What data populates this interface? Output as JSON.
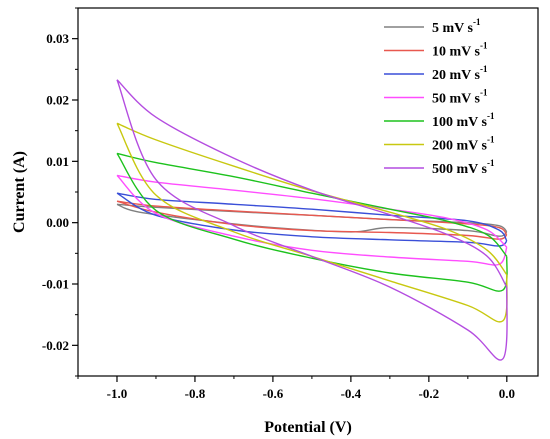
{
  "chart_data": {
    "type": "line",
    "title": "",
    "xlabel": "Potential (V)",
    "ylabel": "Current (A)",
    "xlim": [
      -1.1,
      0.08
    ],
    "ylim": [
      -0.025,
      0.035
    ],
    "xticks": [
      -1.0,
      -0.8,
      -0.6,
      -0.4,
      -0.2,
      0.0
    ],
    "xtick_labels": [
      "-1.0",
      "-0.8",
      "-0.6",
      "-0.4",
      "-0.2",
      "0.0"
    ],
    "yticks": [
      -0.02,
      -0.01,
      0.0,
      0.01,
      0.02,
      0.03
    ],
    "ytick_labels": [
      "-0.02",
      "-0.01",
      "0.00",
      "0.01",
      "0.02",
      "0.03"
    ],
    "grid": false,
    "legend_position": "top-right",
    "series": [
      {
        "name": "5 mV s-1",
        "label_main": "5 mV s",
        "label_sup": "-1",
        "color": "#808080",
        "upper": [
          [
            -1.0,
            0.003
          ],
          [
            -0.9,
            0.0025
          ],
          [
            -0.7,
            0.0018
          ],
          [
            -0.5,
            0.0012
          ],
          [
            -0.3,
            0.0005
          ],
          [
            -0.1,
            0.0
          ],
          [
            -0.02,
            -0.0005
          ],
          [
            0.0,
            -0.0015
          ]
        ],
        "lower": [
          [
            0.0,
            -0.0015
          ],
          [
            -0.02,
            -0.0022
          ],
          [
            -0.1,
            -0.0013
          ],
          [
            -0.3,
            -0.0008
          ],
          [
            -0.4,
            -0.0015
          ],
          [
            -0.6,
            -0.0008
          ],
          [
            -0.8,
            0.0005
          ],
          [
            -0.95,
            0.0018
          ],
          [
            -1.0,
            0.003
          ]
        ]
      },
      {
        "name": "10 mV s-1",
        "label_main": "10 mV s",
        "label_sup": "-1",
        "color": "#e8584f",
        "upper": [
          [
            -1.0,
            0.0035
          ],
          [
            -0.9,
            0.0027
          ],
          [
            -0.7,
            0.0019
          ],
          [
            -0.5,
            0.0012
          ],
          [
            -0.3,
            0.0005
          ],
          [
            -0.1,
            -0.0002
          ],
          [
            -0.02,
            -0.0008
          ],
          [
            0.0,
            -0.002
          ]
        ],
        "lower": [
          [
            0.0,
            -0.002
          ],
          [
            -0.02,
            -0.0027
          ],
          [
            -0.1,
            -0.0021
          ],
          [
            -0.3,
            -0.0016
          ],
          [
            -0.5,
            -0.0013
          ],
          [
            -0.7,
            -0.0003
          ],
          [
            -0.9,
            0.0017
          ],
          [
            -1.0,
            0.0035
          ]
        ]
      },
      {
        "name": "20 mV s-1",
        "label_main": "20 mV s",
        "label_sup": "-1",
        "color": "#3a4fd8",
        "upper": [
          [
            -1.0,
            0.0048
          ],
          [
            -0.9,
            0.0038
          ],
          [
            -0.7,
            0.003
          ],
          [
            -0.5,
            0.0022
          ],
          [
            -0.3,
            0.0012
          ],
          [
            -0.1,
            0.0003
          ],
          [
            -0.02,
            -0.0012
          ],
          [
            0.0,
            -0.003
          ]
        ],
        "lower": [
          [
            0.0,
            -0.003
          ],
          [
            -0.02,
            -0.0038
          ],
          [
            -0.1,
            -0.0032
          ],
          [
            -0.3,
            -0.0028
          ],
          [
            -0.5,
            -0.0023
          ],
          [
            -0.7,
            -0.0012
          ],
          [
            -0.9,
            0.0012
          ],
          [
            -1.0,
            0.0048
          ]
        ]
      },
      {
        "name": "50 mV s-1",
        "label_main": "50 mV s",
        "label_sup": "-1",
        "color": "#ff4dff",
        "upper": [
          [
            -1.0,
            0.0077
          ],
          [
            -0.9,
            0.0066
          ],
          [
            -0.7,
            0.0053
          ],
          [
            -0.5,
            0.0039
          ],
          [
            -0.3,
            0.0022
          ],
          [
            -0.15,
            0.0007
          ],
          [
            -0.05,
            -0.0012
          ],
          [
            0.0,
            -0.004
          ]
        ],
        "lower": [
          [
            0.0,
            -0.004
          ],
          [
            -0.02,
            -0.0068
          ],
          [
            -0.1,
            -0.0063
          ],
          [
            -0.3,
            -0.0056
          ],
          [
            -0.5,
            -0.0045
          ],
          [
            -0.7,
            -0.0022
          ],
          [
            -0.9,
            0.0015
          ],
          [
            -1.0,
            0.0077
          ]
        ]
      },
      {
        "name": "100 mV s-1",
        "label_main": "100 mV s",
        "label_sup": "-1",
        "color": "#1dc21d",
        "upper": [
          [
            -1.0,
            0.0113
          ],
          [
            -0.9,
            0.0098
          ],
          [
            -0.7,
            0.0075
          ],
          [
            -0.5,
            0.0048
          ],
          [
            -0.3,
            0.0022
          ],
          [
            -0.15,
            0.0002
          ],
          [
            -0.05,
            -0.002
          ],
          [
            0.0,
            -0.0055
          ]
        ],
        "lower": [
          [
            0.0,
            -0.0055
          ],
          [
            -0.01,
            -0.011
          ],
          [
            -0.1,
            -0.0097
          ],
          [
            -0.3,
            -0.0082
          ],
          [
            -0.5,
            -0.0058
          ],
          [
            -0.7,
            -0.0027
          ],
          [
            -0.9,
            0.002
          ],
          [
            -1.0,
            0.0113
          ]
        ]
      },
      {
        "name": "200 mV s-1",
        "label_main": "200 mV s",
        "label_sup": "-1",
        "color": "#c8c810",
        "upper": [
          [
            -1.0,
            0.0162
          ],
          [
            -0.9,
            0.0135
          ],
          [
            -0.7,
            0.0092
          ],
          [
            -0.5,
            0.0052
          ],
          [
            -0.3,
            0.0017
          ],
          [
            -0.15,
            -0.0012
          ],
          [
            -0.05,
            -0.0045
          ],
          [
            0.0,
            -0.0085
          ]
        ],
        "lower": [
          [
            0.0,
            -0.0085
          ],
          [
            -0.01,
            -0.016
          ],
          [
            -0.1,
            -0.0135
          ],
          [
            -0.3,
            -0.0095
          ],
          [
            -0.5,
            -0.0055
          ],
          [
            -0.7,
            -0.0015
          ],
          [
            -0.9,
            0.0045
          ],
          [
            -1.0,
            0.0162
          ]
        ]
      },
      {
        "name": "500 mV s-1",
        "label_main": "500 mV s",
        "label_sup": "-1",
        "color": "#b44de0",
        "upper": [
          [
            -1.0,
            0.0233
          ],
          [
            -0.9,
            0.0172
          ],
          [
            -0.7,
            0.0105
          ],
          [
            -0.5,
            0.0053
          ],
          [
            -0.3,
            0.0013
          ],
          [
            -0.15,
            -0.002
          ],
          [
            -0.05,
            -0.0055
          ],
          [
            0.0,
            -0.0105
          ]
        ],
        "lower": [
          [
            0.0,
            -0.0105
          ],
          [
            -0.01,
            -0.0222
          ],
          [
            -0.1,
            -0.0175
          ],
          [
            -0.3,
            -0.0105
          ],
          [
            -0.5,
            -0.0055
          ],
          [
            -0.7,
            -0.0005
          ],
          [
            -0.9,
            0.007
          ],
          [
            -1.0,
            0.0233
          ]
        ]
      }
    ]
  }
}
